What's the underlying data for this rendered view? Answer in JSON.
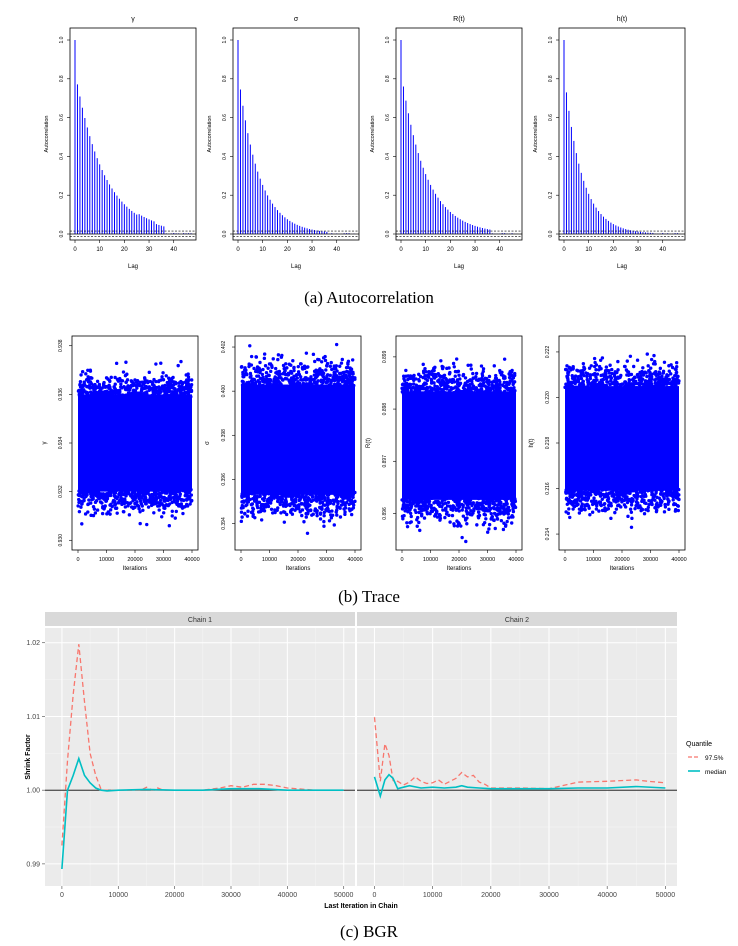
{
  "captions": {
    "a": "(a) Autocorrelation",
    "b": "(b) Trace",
    "c": "(c) BGR"
  },
  "colors": {
    "bars": "#0000ff",
    "dots": "#0000ff",
    "bgr_975": "#f8766d",
    "bgr_median": "#00bfc4",
    "panel_bg": "#ebebeb",
    "strip_bg": "#d9d9d9"
  },
  "chart_data": [
    {
      "type": "bar",
      "section": "autocorrelation",
      "title": "γ",
      "xlabel": "Lag",
      "ylabel": "Autocorrelation",
      "xlim": [
        0,
        47
      ],
      "ylim": [
        0,
        1
      ],
      "xticks": [
        "0",
        "10",
        "20",
        "30",
        "40"
      ],
      "yticks": [
        "0.0",
        "0.2",
        "0.4",
        "0.6",
        "0.8",
        "1.0"
      ],
      "decay": 0.085,
      "floor": 0.0
    },
    {
      "type": "bar",
      "section": "autocorrelation",
      "title": "σ",
      "xlabel": "Lag",
      "ylabel": "Autocorrelation",
      "xlim": [
        0,
        47
      ],
      "ylim": [
        0,
        1
      ],
      "xticks": [
        "0",
        "10",
        "20",
        "30",
        "40"
      ],
      "yticks": [
        "0.0",
        "0.2",
        "0.4",
        "0.6",
        "0.8",
        "1.0"
      ],
      "decay": 0.12,
      "floor": 0.0
    },
    {
      "type": "bar",
      "section": "autocorrelation",
      "title": "R(t)",
      "xlabel": "Lag",
      "ylabel": "Autocorrelation",
      "xlim": [
        0,
        47
      ],
      "ylim": [
        0,
        1
      ],
      "xticks": [
        "0",
        "10",
        "20",
        "30",
        "40"
      ],
      "yticks": [
        "0.0",
        "0.2",
        "0.4",
        "0.6",
        "0.8",
        "1.0"
      ],
      "decay": 0.1,
      "floor": 0.0
    },
    {
      "type": "bar",
      "section": "autocorrelation",
      "title": "h(t)",
      "xlabel": "Lag",
      "ylabel": "Autocorrelation",
      "xlim": [
        0,
        47
      ],
      "ylim": [
        0,
        1
      ],
      "xticks": [
        "0",
        "10",
        "20",
        "30",
        "40"
      ],
      "yticks": [
        "0.0",
        "0.2",
        "0.4",
        "0.6",
        "0.8",
        "1.0"
      ],
      "decay": 0.14,
      "floor": 0.0
    },
    {
      "type": "scatter",
      "section": "trace",
      "ylabel": "γ",
      "xlabel": "Iterations",
      "xlim": [
        0,
        40000
      ],
      "ylim": [
        0.9296,
        0.9384
      ],
      "xticks": [
        0,
        10000,
        20000,
        30000,
        40000
      ],
      "yticks": [
        0.93,
        0.932,
        0.934,
        0.936,
        0.938
      ],
      "ytick_labels": [
        "0.930",
        "0.932",
        "0.934",
        "0.936",
        "0.938"
      ],
      "center": 0.934,
      "sd": 0.001
    },
    {
      "type": "scatter",
      "section": "trace",
      "ylabel": "σ",
      "xlabel": "Iterations",
      "xlim": [
        0,
        40000
      ],
      "ylim": [
        0.3928,
        0.4025
      ],
      "xticks": [
        0,
        10000,
        20000,
        30000,
        40000
      ],
      "yticks": [
        0.394,
        0.396,
        0.398,
        0.4,
        0.402
      ],
      "ytick_labels": [
        "0.394",
        "0.396",
        "0.398",
        "0.400",
        "0.402"
      ],
      "center": 0.3978,
      "sd": 0.00125
    },
    {
      "type": "scatter",
      "section": "trace",
      "ylabel": "R(t)",
      "xlabel": "Iterations",
      "xlim": [
        0,
        40000
      ],
      "ylim": [
        0.8953,
        0.8994
      ],
      "xticks": [
        0,
        10000,
        20000,
        30000,
        40000
      ],
      "yticks": [
        0.896,
        0.897,
        0.898,
        0.899
      ],
      "ytick_labels": [
        "0.896",
        "0.897",
        "0.898",
        "0.899"
      ],
      "center": 0.8973,
      "sd": 0.00052
    },
    {
      "type": "scatter",
      "section": "trace",
      "ylabel": "h(t)",
      "xlabel": "Iterations",
      "xlim": [
        0,
        40000
      ],
      "ylim": [
        0.2133,
        0.2227
      ],
      "xticks": [
        0,
        10000,
        20000,
        30000,
        40000
      ],
      "yticks": [
        0.214,
        0.216,
        0.218,
        0.22,
        0.222
      ],
      "ytick_labels": [
        "0.214",
        "0.216",
        "0.218",
        "0.220",
        "0.222"
      ],
      "center": 0.2182,
      "sd": 0.00115
    },
    {
      "type": "line",
      "section": "bgr",
      "ylabel": "Shrink Factor",
      "xlabel": "Last Iteration in Chain",
      "ylim": [
        0.987,
        1.022
      ],
      "xlim": [
        -3000,
        52000
      ],
      "yticks": [
        0.99,
        1.0,
        1.01,
        1.02
      ],
      "ytick_labels": [
        "0.99",
        "1.00",
        "1.01",
        "1.02"
      ],
      "xticks": [
        0,
        10000,
        20000,
        30000,
        40000,
        50000
      ],
      "xtick_labels": [
        "0",
        "10000",
        "20000",
        "30000",
        "40000",
        "50000"
      ],
      "legend": {
        "title": "Quantile",
        "entries": [
          "97.5%",
          "median"
        ],
        "position": "right"
      },
      "facets": [
        {
          "strip": "Chain 1",
          "series": [
            {
              "name": "97.5%",
              "x": [
                0,
                1000,
                2000,
                3000,
                4000,
                5000,
                6000,
                7000,
                8000,
                10000,
                12000,
                14000,
                15000,
                16000,
                17000,
                18000,
                19000,
                20000,
                25000,
                28000,
                30000,
                32000,
                34000,
                36000,
                38000,
                40000,
                45000,
                50000
              ],
              "y": [
                0.9925,
                1.004,
                1.013,
                1.0198,
                1.012,
                1.005,
                1.002,
                1.0,
                1.0,
                1.0,
                1.0,
                1.0,
                1.0004,
                1.0,
                1.0003,
                1.0,
                1.0,
                1.0,
                1.0,
                1.0003,
                1.0006,
                1.0004,
                1.0008,
                1.0008,
                1.0006,
                1.0003,
                1.0,
                1.0
              ]
            },
            {
              "name": "median",
              "x": [
                0,
                1000,
                2000,
                3000,
                4000,
                5000,
                6000,
                7000,
                8000,
                10000,
                15000,
                20000,
                25000,
                30000,
                35000,
                40000,
                45000,
                50000
              ],
              "y": [
                0.9893,
                1.0,
                1.002,
                1.0043,
                1.002,
                1.001,
                1.0003,
                1.0,
                0.9999,
                1.0,
                1.0001,
                1.0,
                1.0,
                1.0002,
                1.0002,
                1.0,
                1.0,
                1.0
              ]
            }
          ]
        },
        {
          "strip": "Chain 2",
          "series": [
            {
              "name": "97.5%",
              "x": [
                0,
                1000,
                1800,
                2500,
                3200,
                4000,
                5000,
                6000,
                7000,
                8000,
                9000,
                10000,
                11000,
                12000,
                13000,
                14000,
                15000,
                16000,
                17000,
                18000,
                19000,
                20000,
                25000,
                30000,
                35000,
                40000,
                45000,
                47000,
                50000
              ],
              "y": [
                1.0099,
                1.0012,
                1.0063,
                1.0047,
                1.0013,
                1.0012,
                1.0007,
                1.0011,
                1.0018,
                1.0012,
                1.0009,
                1.001,
                1.0014,
                1.0008,
                1.0012,
                1.0016,
                1.0024,
                1.0018,
                1.002,
                1.0011,
                1.0008,
                1.0003,
                1.0003,
                1.0002,
                1.0011,
                1.0012,
                1.0014,
                1.0012,
                1.001
              ]
            },
            {
              "name": "median",
              "x": [
                0,
                1000,
                1800,
                2500,
                3200,
                4000,
                5000,
                6000,
                8000,
                10000,
                12000,
                14000,
                15000,
                16000,
                18000,
                20000,
                25000,
                30000,
                35000,
                40000,
                45000,
                50000
              ],
              "y": [
                1.0018,
                0.9992,
                1.0014,
                1.0021,
                1.0016,
                1.0002,
                1.0004,
                1.0006,
                1.0003,
                1.0004,
                1.0003,
                1.0004,
                1.0006,
                1.0004,
                1.0003,
                1.0002,
                1.0002,
                1.0002,
                1.0003,
                1.0003,
                1.0005,
                1.0003
              ]
            }
          ]
        }
      ]
    }
  ]
}
